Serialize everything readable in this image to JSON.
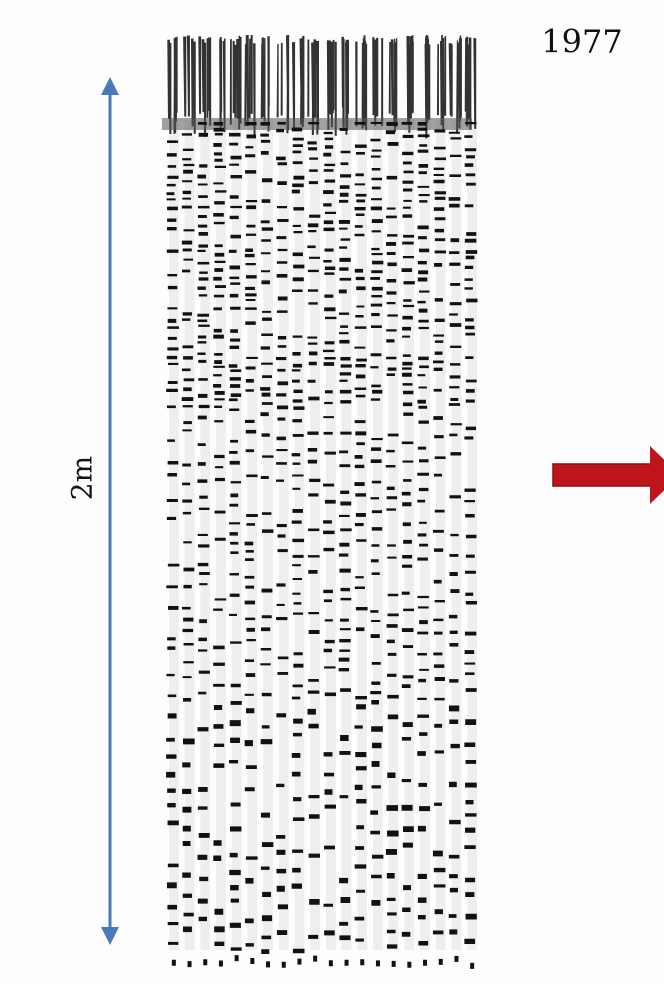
{
  "year": "1977",
  "scale_label": "2m"
}
